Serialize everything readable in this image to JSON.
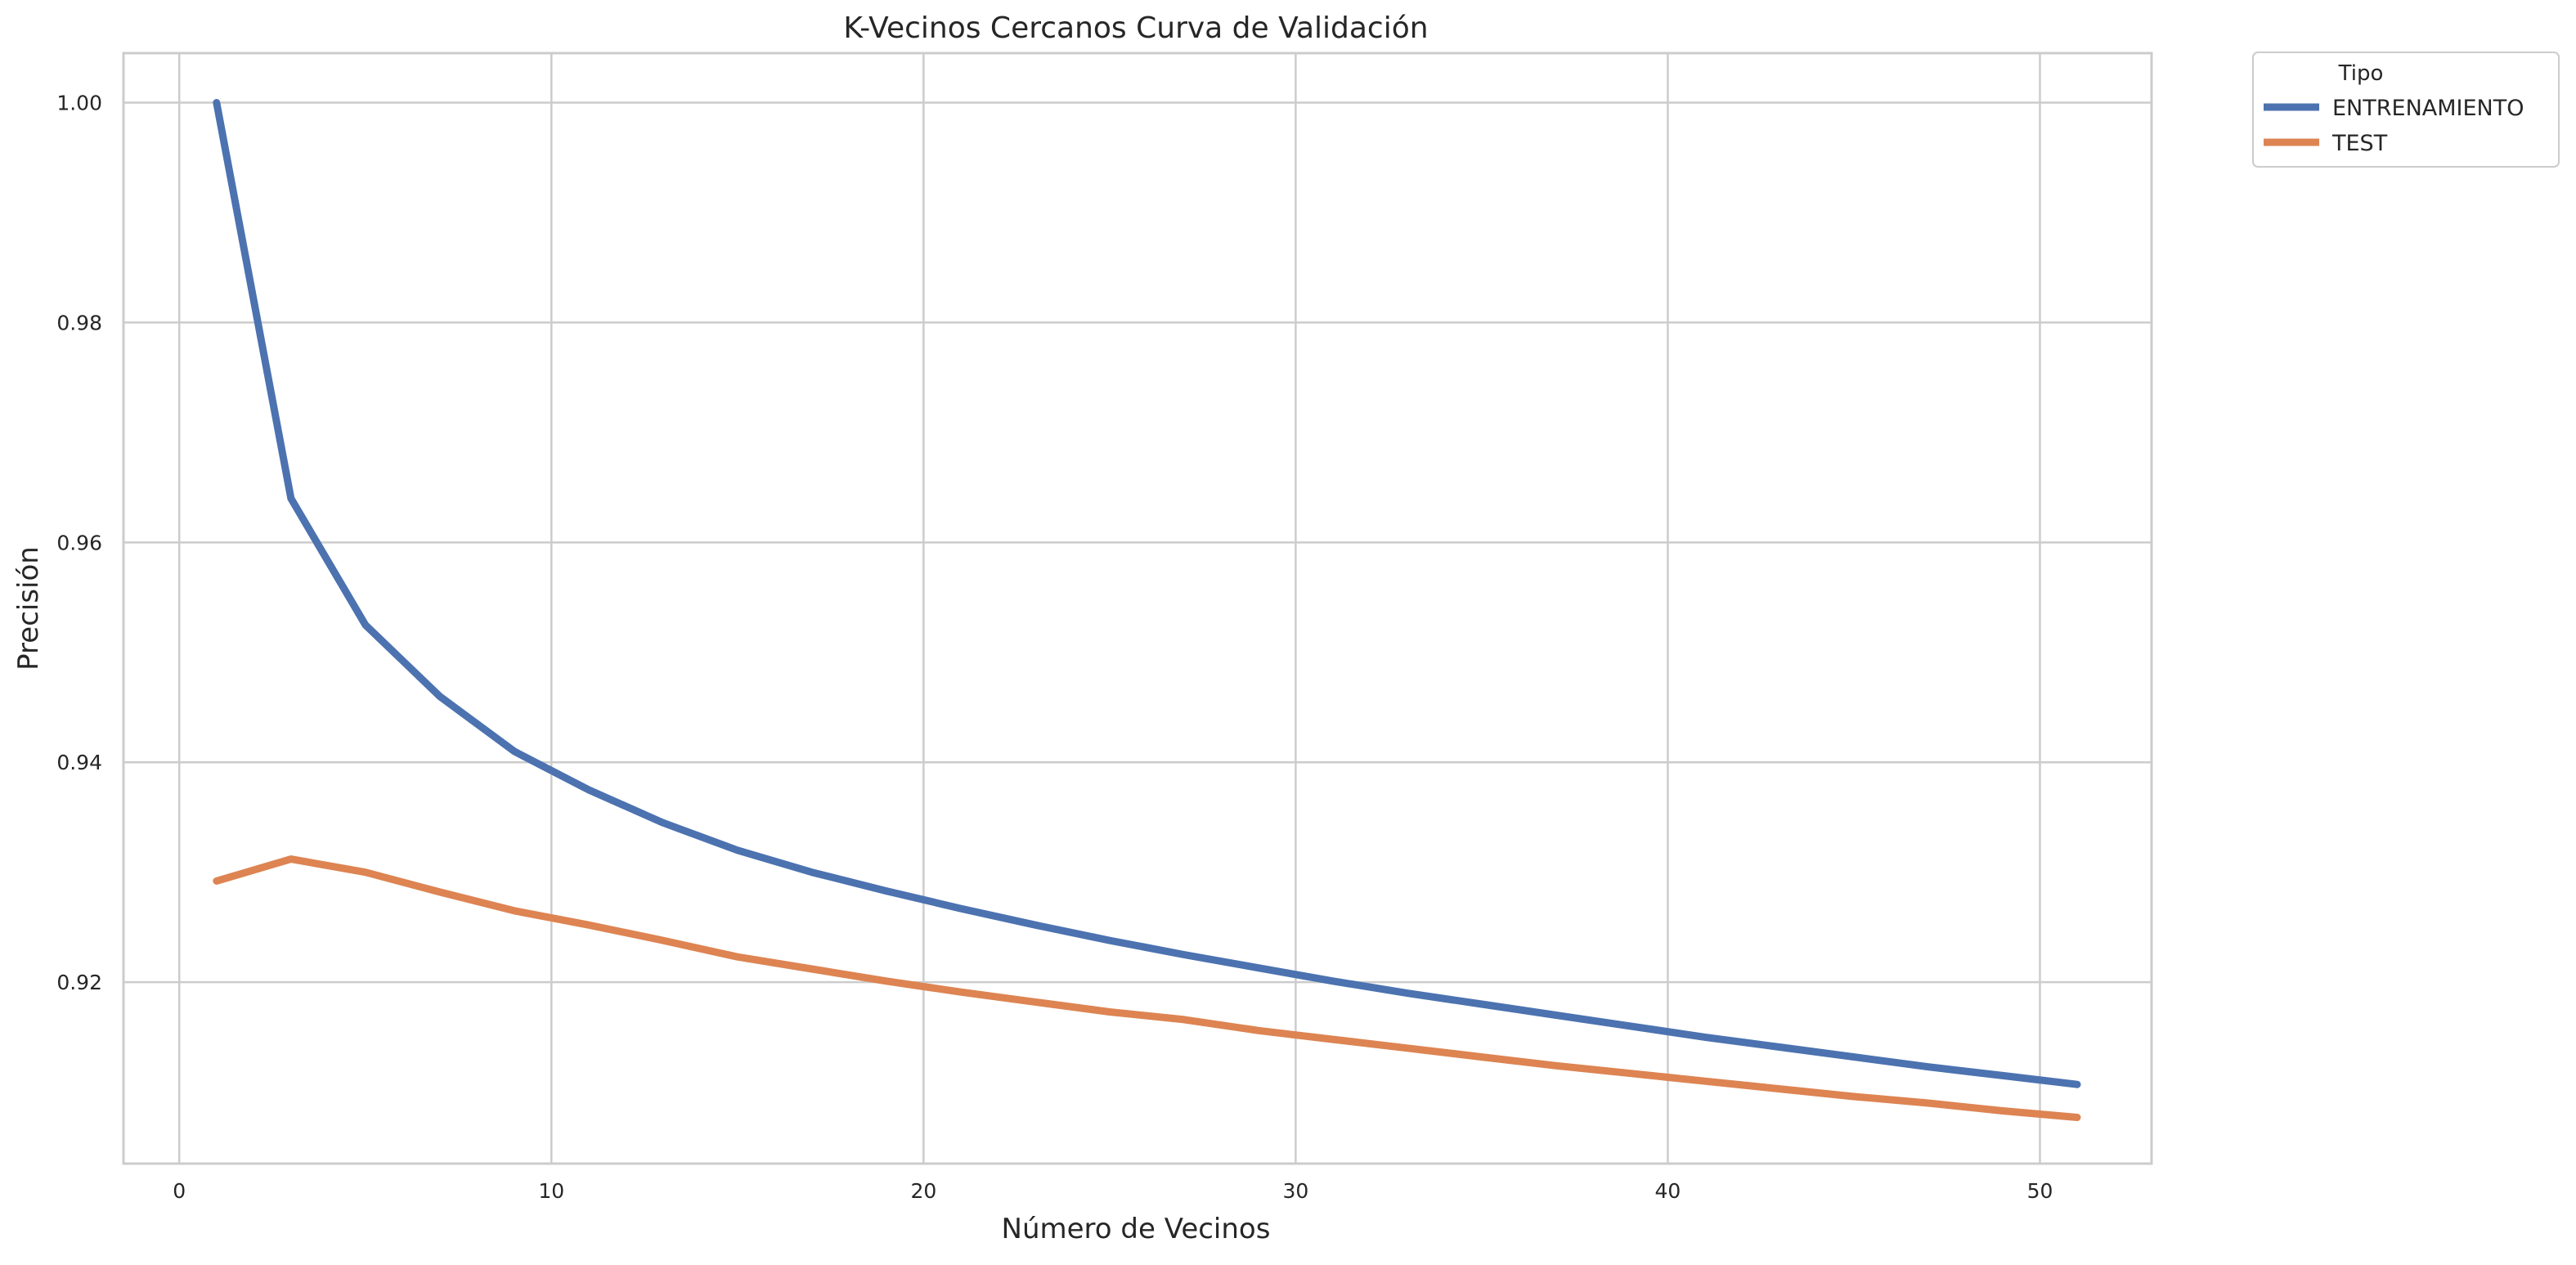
{
  "chart_data": {
    "type": "line",
    "title": "K-Vecinos Cercanos Curva de Validación",
    "xlabel": "Número de Vecinos",
    "ylabel": "Precisión",
    "xlim": [
      -1.5,
      53
    ],
    "ylim": [
      0.9035,
      1.0045
    ],
    "xticks": [
      0,
      10,
      20,
      30,
      40,
      50
    ],
    "yticks": [
      0.92,
      0.94,
      0.96,
      0.98,
      1.0
    ],
    "ytick_labels": [
      "0.92",
      "0.94",
      "0.96",
      "0.98",
      "1.00"
    ],
    "grid": true,
    "legend": {
      "title": "Tipo",
      "placement": "outside-top-right"
    },
    "x": [
      1,
      3,
      5,
      7,
      9,
      11,
      13,
      15,
      17,
      19,
      21,
      23,
      25,
      27,
      29,
      31,
      33,
      35,
      37,
      39,
      41,
      43,
      45,
      47,
      49,
      51
    ],
    "series": [
      {
        "name": "ENTRENAMIENTO",
        "color": "#4c72b0",
        "values": [
          1.0,
          0.964,
          0.9525,
          0.946,
          0.941,
          0.9375,
          0.9345,
          0.932,
          0.93,
          0.9283,
          0.9267,
          0.9252,
          0.9238,
          0.9225,
          0.9213,
          0.9201,
          0.919,
          0.918,
          0.917,
          0.916,
          0.915,
          0.9141,
          0.9132,
          0.9123,
          0.9115,
          0.9107
        ]
      },
      {
        "name": "TEST",
        "color": "#dd8452",
        "values": [
          0.9292,
          0.9312,
          0.93,
          0.9282,
          0.9265,
          0.9252,
          0.9238,
          0.9223,
          0.9212,
          0.9201,
          0.9191,
          0.9182,
          0.9173,
          0.9166,
          0.9156,
          0.9148,
          0.914,
          0.9132,
          0.9124,
          0.9117,
          0.911,
          0.9103,
          0.9096,
          0.909,
          0.9083,
          0.9077
        ]
      }
    ]
  }
}
